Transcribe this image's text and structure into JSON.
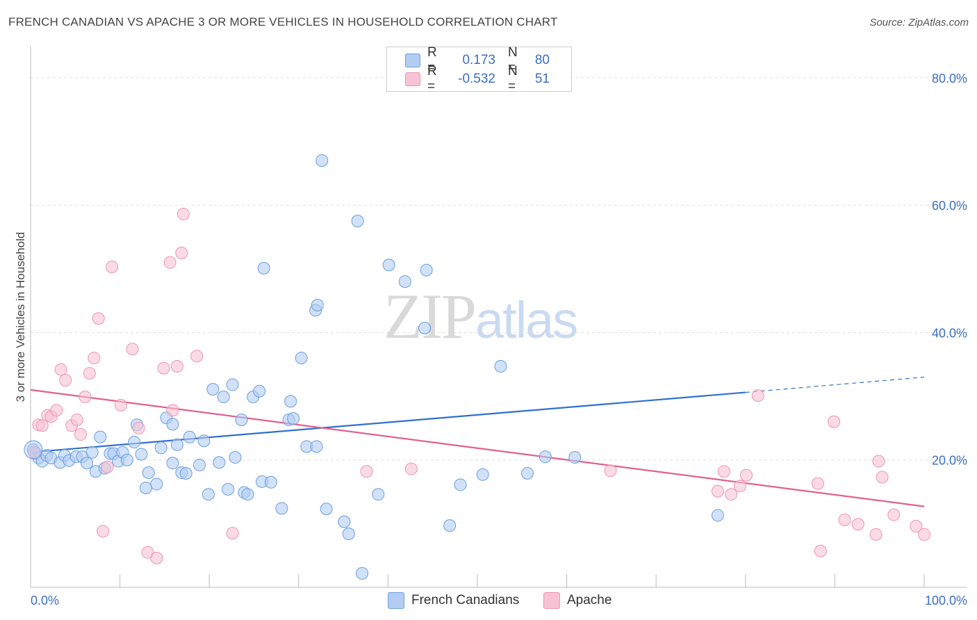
{
  "title": "FRENCH CANADIAN VS APACHE 3 OR MORE VEHICLES IN HOUSEHOLD CORRELATION CHART",
  "source": "Source: ZipAtlas.com",
  "watermark": {
    "zip": "ZIP",
    "atlas": "atlas"
  },
  "legend": {
    "rows": [
      {
        "r_label": "R =",
        "r_value": "0.173",
        "n_label": "N =",
        "n_value": "80",
        "color": "#a8c8f0"
      },
      {
        "r_label": "R =",
        "r_value": "-0.532",
        "n_label": "N =",
        "n_value": "51",
        "color": "#f5b8cc"
      }
    ]
  },
  "chart_data": {
    "type": "scatter",
    "ylabel": "3 or more Vehicles in Household",
    "xlim": [
      0,
      100
    ],
    "ylim": [
      0,
      85
    ],
    "x_tick_labels": [
      "0.0%",
      "100.0%"
    ],
    "y_ticks": [
      20,
      40,
      60,
      80
    ],
    "y_tick_labels": [
      "20.0%",
      "40.0%",
      "60.0%",
      "80.0%"
    ],
    "grid": "horizontal dashed",
    "legend_placement": "bottom-center",
    "series": [
      {
        "name": "French Canadians",
        "color": "#6a9ee0",
        "fill": "#b3cdf2",
        "line_color": "#2f6fcf",
        "trend": {
          "x0": 0,
          "y0": 21.2,
          "x1": 80,
          "y1": 30.6,
          "x_dash_end": 100,
          "y_dash_end": 33.0
        },
        "points": [
          [
            0.3,
            21.6
          ],
          [
            0.6,
            21.0
          ],
          [
            0.9,
            20.3
          ],
          [
            1.3,
            19.8
          ],
          [
            1.8,
            20.7
          ],
          [
            2.3,
            20.3
          ],
          [
            3.3,
            19.6
          ],
          [
            3.8,
            20.7
          ],
          [
            4.3,
            19.9
          ],
          [
            5.1,
            20.5
          ],
          [
            5.8,
            20.5
          ],
          [
            6.3,
            19.5
          ],
          [
            6.9,
            21.2
          ],
          [
            7.3,
            18.2
          ],
          [
            7.8,
            23.6
          ],
          [
            8.3,
            18.7
          ],
          [
            8.9,
            21.0
          ],
          [
            9.3,
            21.0
          ],
          [
            9.8,
            19.8
          ],
          [
            10.3,
            21.2
          ],
          [
            10.8,
            20.0
          ],
          [
            11.6,
            22.8
          ],
          [
            11.9,
            25.5
          ],
          [
            12.4,
            20.9
          ],
          [
            12.9,
            15.6
          ],
          [
            13.2,
            18.0
          ],
          [
            14.1,
            16.2
          ],
          [
            14.6,
            21.9
          ],
          [
            15.2,
            26.6
          ],
          [
            15.9,
            25.6
          ],
          [
            15.9,
            19.5
          ],
          [
            16.4,
            22.4
          ],
          [
            16.9,
            18.0
          ],
          [
            17.4,
            17.9
          ],
          [
            17.8,
            23.6
          ],
          [
            18.9,
            19.2
          ],
          [
            19.4,
            23.0
          ],
          [
            19.9,
            14.6
          ],
          [
            20.4,
            31.1
          ],
          [
            21.1,
            19.6
          ],
          [
            21.6,
            29.9
          ],
          [
            22.1,
            15.4
          ],
          [
            22.6,
            31.8
          ],
          [
            22.9,
            20.4
          ],
          [
            23.6,
            26.3
          ],
          [
            23.9,
            14.9
          ],
          [
            24.3,
            14.6
          ],
          [
            24.9,
            29.9
          ],
          [
            25.6,
            30.8
          ],
          [
            25.9,
            16.6
          ],
          [
            26.1,
            50.1
          ],
          [
            26.9,
            16.5
          ],
          [
            28.1,
            12.4
          ],
          [
            28.9,
            26.3
          ],
          [
            29.1,
            29.2
          ],
          [
            29.4,
            26.5
          ],
          [
            30.3,
            36.0
          ],
          [
            30.9,
            22.1
          ],
          [
            31.9,
            43.5
          ],
          [
            32.1,
            44.3
          ],
          [
            32.6,
            67.0
          ],
          [
            33.1,
            12.3
          ],
          [
            35.1,
            10.3
          ],
          [
            35.6,
            8.4
          ],
          [
            36.6,
            57.5
          ],
          [
            37.1,
            2.2
          ],
          [
            38.9,
            14.6
          ],
          [
            40.1,
            50.6
          ],
          [
            41.9,
            48.0
          ],
          [
            44.1,
            40.7
          ],
          [
            44.3,
            49.8
          ],
          [
            46.9,
            9.7
          ],
          [
            48.1,
            16.1
          ],
          [
            50.6,
            17.7
          ],
          [
            52.6,
            34.7
          ],
          [
            55.6,
            17.9
          ],
          [
            57.6,
            20.5
          ],
          [
            60.9,
            20.4
          ],
          [
            76.9,
            11.3
          ],
          [
            32.0,
            22.1
          ]
        ]
      },
      {
        "name": "Apache",
        "color": "#ef93b2",
        "fill": "#f7c3d4",
        "line_color": "#e0608e",
        "trend": {
          "x0": 0,
          "y0": 31.0,
          "x1": 100,
          "y1": 12.7
        },
        "points": [
          [
            0.4,
            21.2
          ],
          [
            0.9,
            25.5
          ],
          [
            1.3,
            25.4
          ],
          [
            1.9,
            27.0
          ],
          [
            2.3,
            26.8
          ],
          [
            2.9,
            27.8
          ],
          [
            3.4,
            34.2
          ],
          [
            3.9,
            32.5
          ],
          [
            4.6,
            25.4
          ],
          [
            5.2,
            26.3
          ],
          [
            5.6,
            24.0
          ],
          [
            6.1,
            29.9
          ],
          [
            6.6,
            33.6
          ],
          [
            7.1,
            36.0
          ],
          [
            7.6,
            42.2
          ],
          [
            8.1,
            8.8
          ],
          [
            8.6,
            18.9
          ],
          [
            9.1,
            50.3
          ],
          [
            10.1,
            28.6
          ],
          [
            11.4,
            37.4
          ],
          [
            12.1,
            25.0
          ],
          [
            13.1,
            5.5
          ],
          [
            14.1,
            4.6
          ],
          [
            14.9,
            34.4
          ],
          [
            15.6,
            51.0
          ],
          [
            15.9,
            27.8
          ],
          [
            16.4,
            34.7
          ],
          [
            16.9,
            52.5
          ],
          [
            17.1,
            58.6
          ],
          [
            18.6,
            36.3
          ],
          [
            22.6,
            8.5
          ],
          [
            37.6,
            18.2
          ],
          [
            42.6,
            18.6
          ],
          [
            64.9,
            18.3
          ],
          [
            76.9,
            15.1
          ],
          [
            77.6,
            18.2
          ],
          [
            78.4,
            14.6
          ],
          [
            79.4,
            15.9
          ],
          [
            80.1,
            17.6
          ],
          [
            81.4,
            30.1
          ],
          [
            88.1,
            16.3
          ],
          [
            88.4,
            5.7
          ],
          [
            89.9,
            26.0
          ],
          [
            91.1,
            10.6
          ],
          [
            92.6,
            9.9
          ],
          [
            94.6,
            8.3
          ],
          [
            94.9,
            19.8
          ],
          [
            95.3,
            17.3
          ],
          [
            96.6,
            11.4
          ],
          [
            99.1,
            9.6
          ],
          [
            100,
            8.3
          ]
        ]
      }
    ]
  }
}
